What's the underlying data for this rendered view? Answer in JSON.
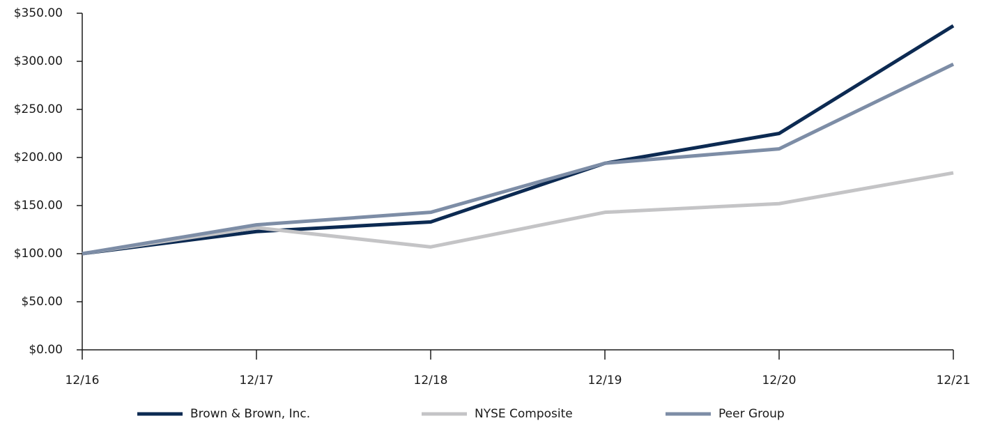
{
  "chart_data": {
    "type": "line",
    "categories": [
      "12/16",
      "12/17",
      "12/18",
      "12/19",
      "12/20",
      "12/21"
    ],
    "series": [
      {
        "name": "Brown & Brown, Inc.",
        "color": "#0c2a52",
        "values": [
          100,
          123,
          133,
          194,
          225,
          337
        ]
      },
      {
        "name": "NYSE Composite",
        "color": "#c4c4c6",
        "values": [
          100,
          127,
          107,
          143,
          152,
          184
        ]
      },
      {
        "name": "Peer Group",
        "color": "#7d8da6",
        "values": [
          100,
          130,
          143,
          194,
          209,
          297
        ]
      }
    ],
    "ylim": [
      0,
      350
    ],
    "yticks": [
      {
        "value": 0,
        "label": "$0.00"
      },
      {
        "value": 50,
        "label": "$50.00"
      },
      {
        "value": 100,
        "label": "$100.00"
      },
      {
        "value": 150,
        "label": "$150.00"
      },
      {
        "value": 200,
        "label": "$200.00"
      },
      {
        "value": 250,
        "label": "$250.00"
      },
      {
        "value": 300,
        "label": "$300.00"
      },
      {
        "value": 350,
        "label": "$350.00"
      }
    ],
    "grid": false,
    "legend": "bottom"
  }
}
